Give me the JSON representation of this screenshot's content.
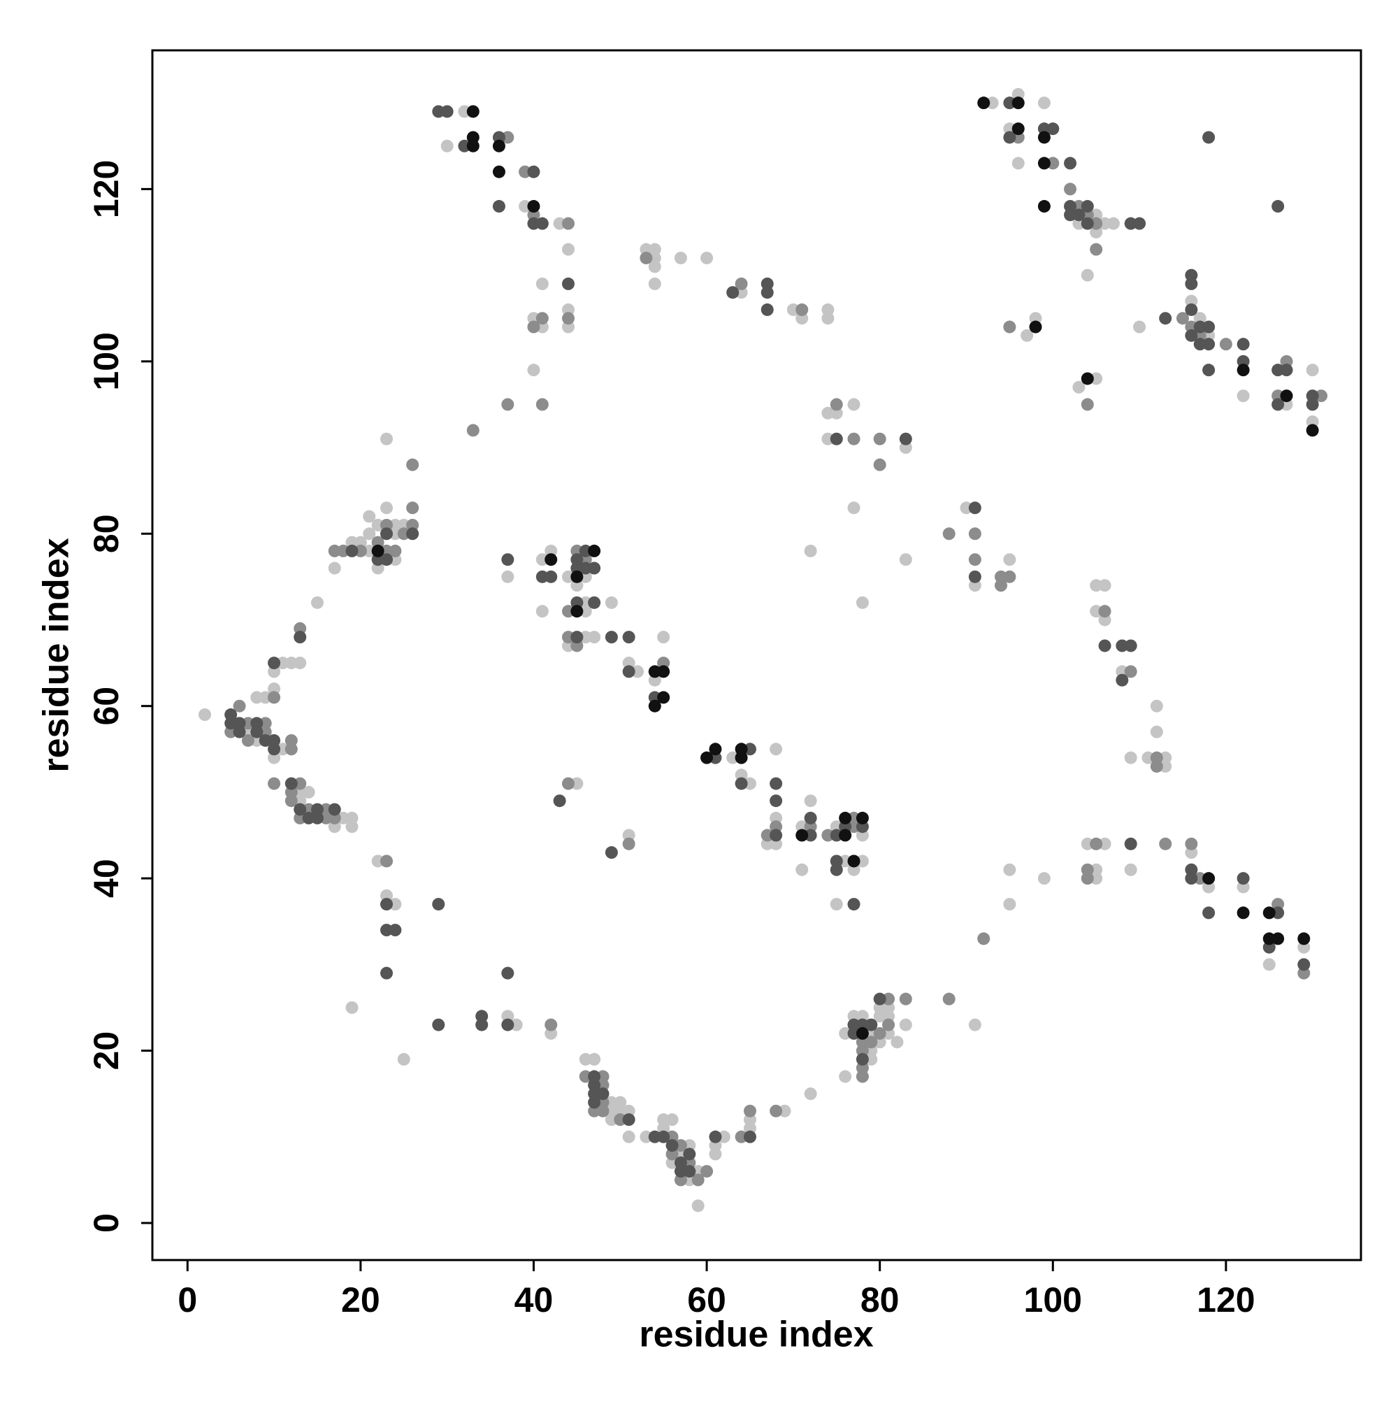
{
  "chart_data": {
    "type": "scatter",
    "x_label": "residue index",
    "y_label": "residue index",
    "xlim": [
      -4.06,
      135.6
    ],
    "ylim": [
      -4.3,
      136.1
    ],
    "xticks": [
      0,
      20,
      40,
      60,
      80,
      100,
      120
    ],
    "yticks": [
      0,
      20,
      40,
      60,
      80,
      100,
      120
    ],
    "grid": false,
    "series": [
      {
        "color": "#c4c4c4",
        "x": [
          32,
          30,
          39,
          43,
          44,
          41,
          44,
          44,
          40,
          41,
          40,
          53,
          54,
          54,
          54,
          57,
          60,
          54,
          64,
          70,
          71,
          74,
          74,
          74,
          75,
          74,
          77,
          83,
          77,
          72,
          78,
          83,
          93,
          96,
          99,
          95,
          96,
          105,
          103,
          106,
          107,
          105,
          104,
          97,
          98,
          103,
          105,
          110,
          116,
          117,
          118,
          122,
          127,
          130,
          130,
          2,
          7,
          8,
          11,
          10,
          8,
          9,
          10,
          10,
          11,
          12,
          13,
          15,
          13,
          14,
          13,
          18,
          19,
          17,
          19,
          17,
          19,
          20,
          21,
          21,
          21,
          22,
          22,
          23,
          24,
          24,
          24,
          25,
          23,
          22,
          23,
          24,
          19,
          37,
          38,
          42,
          25,
          37,
          41,
          41,
          42,
          44,
          45,
          46,
          46,
          46,
          46,
          47,
          44,
          49,
          51,
          52,
          55,
          54,
          45,
          51,
          63,
          64,
          65,
          68,
          68,
          67,
          68,
          71,
          72,
          71,
          75,
          78,
          76,
          77,
          78,
          75,
          46,
          47,
          49,
          49,
          50,
          50,
          51,
          49,
          51,
          53,
          55,
          56,
          55,
          58,
          57,
          56,
          59,
          58,
          59,
          62,
          61,
          61,
          65,
          65,
          69,
          72,
          76,
          76,
          77,
          78,
          79,
          79,
          79,
          80,
          80,
          81,
          81,
          81,
          80,
          82,
          83,
          91,
          90,
          91,
          95,
          105,
          106,
          105,
          106,
          108,
          112,
          112,
          109,
          111,
          113,
          113,
          95,
          95,
          99,
          104,
          106,
          105,
          105,
          109,
          116,
          118,
          122,
          125,
          129
        ],
        "values": [
          129,
          125,
          118,
          116,
          113,
          109,
          106,
          104,
          105,
          104,
          99,
          113,
          113,
          112,
          111,
          112,
          112,
          109,
          108,
          106,
          105,
          106,
          105,
          94,
          94,
          91,
          95,
          90,
          83,
          78,
          72,
          77,
          130,
          131,
          130,
          127,
          123,
          117,
          116,
          116,
          116,
          115,
          110,
          103,
          105,
          97,
          98,
          104,
          107,
          105,
          103,
          96,
          95,
          99,
          93,
          59,
          57,
          56,
          55,
          54,
          61,
          61,
          62,
          64,
          65,
          65,
          65,
          72,
          50,
          50,
          49,
          47,
          47,
          46,
          46,
          76,
          79,
          79,
          78,
          80,
          82,
          76,
          81,
          83,
          77,
          80,
          81,
          81,
          91,
          42,
          38,
          37,
          25,
          24,
          23,
          22,
          19,
          75,
          77,
          71,
          78,
          75,
          74,
          75,
          72,
          71,
          68,
          68,
          67,
          72,
          65,
          64,
          68,
          63,
          51,
          45,
          54,
          52,
          51,
          55,
          47,
          44,
          44,
          46,
          49,
          41,
          46,
          45,
          42,
          41,
          42,
          37,
          19,
          19,
          14,
          13,
          14,
          13,
          13,
          12,
          10,
          10,
          12,
          12,
          11,
          9,
          8,
          7,
          6,
          5,
          2,
          10,
          9,
          8,
          11,
          12,
          13,
          15,
          17,
          22,
          24,
          24,
          22,
          20,
          19,
          25,
          24,
          25,
          24,
          22,
          21,
          21,
          23,
          23,
          83,
          74,
          77,
          74,
          74,
          71,
          70,
          64,
          60,
          57,
          54,
          54,
          54,
          53,
          41,
          37,
          40,
          44,
          44,
          41,
          40,
          41,
          43,
          39,
          39,
          30,
          32
        ]
      },
      {
        "color": "#8c8c8c",
        "x": [
          37,
          39,
          40,
          44,
          44,
          41,
          40,
          41,
          37,
          33,
          53,
          64,
          71,
          75,
          77,
          80,
          80,
          96,
          100,
          102,
          103,
          104,
          105,
          105,
          95,
          104,
          115,
          116,
          117,
          120,
          127,
          126,
          131,
          6,
          7,
          9,
          5,
          9,
          7,
          12,
          12,
          10,
          13,
          10,
          13,
          12,
          12,
          14,
          16,
          13,
          16,
          17,
          17,
          18,
          20,
          22,
          23,
          23,
          24,
          25,
          26,
          26,
          26,
          23,
          42,
          45,
          46,
          44,
          44,
          45,
          55,
          44,
          51,
          68,
          67,
          72,
          74,
          77,
          77,
          46,
          48,
          48,
          48,
          47,
          48,
          50,
          56,
          57,
          56,
          58,
          60,
          57,
          59,
          64,
          65,
          68,
          78,
          78,
          78,
          78,
          79,
          81,
          81,
          80,
          83,
          88,
          88,
          91,
          91,
          94,
          94,
          95,
          106,
          109,
          112,
          112,
          92,
          105,
          104,
          104,
          113,
          116,
          117,
          126,
          129
        ],
        "values": [
          126,
          122,
          117,
          116,
          105,
          105,
          104,
          95,
          95,
          92,
          112,
          109,
          106,
          95,
          91,
          91,
          88,
          126,
          123,
          120,
          118,
          117,
          116,
          113,
          104,
          95,
          105,
          104,
          103,
          102,
          100,
          96,
          96,
          60,
          58,
          58,
          57,
          57,
          56,
          55,
          56,
          61,
          69,
          51,
          51,
          50,
          49,
          48,
          48,
          47,
          47,
          47,
          78,
          78,
          78,
          79,
          78,
          81,
          78,
          80,
          81,
          83,
          88,
          42,
          23,
          78,
          77,
          71,
          68,
          67,
          65,
          51,
          44,
          46,
          45,
          46,
          45,
          47,
          46,
          17,
          17,
          16,
          14,
          13,
          13,
          12,
          10,
          9,
          8,
          7,
          6,
          5,
          5,
          10,
          13,
          13,
          17,
          21,
          20,
          18,
          21,
          26,
          23,
          22,
          26,
          26,
          80,
          80,
          77,
          75,
          74,
          75,
          71,
          64,
          54,
          53,
          33,
          44,
          41,
          40,
          44,
          44,
          40,
          37,
          29
        ]
      },
      {
        "color": "#555555",
        "x": [
          29,
          30,
          32,
          36,
          36,
          40,
          40,
          41,
          44,
          63,
          67,
          67,
          67,
          75,
          83,
          95,
          95,
          99,
          100,
          102,
          102,
          104,
          102,
          103,
          104,
          109,
          110,
          118,
          126,
          113,
          116,
          116,
          116,
          117,
          118,
          116,
          117,
          118,
          118,
          122,
          122,
          126,
          127,
          126,
          130,
          130,
          5,
          5,
          6,
          8,
          6,
          8,
          9,
          10,
          10,
          10,
          13,
          12,
          13,
          15,
          17,
          14,
          15,
          19,
          22,
          23,
          23,
          26,
          23,
          23,
          24,
          23,
          29,
          29,
          34,
          34,
          37,
          37,
          37,
          41,
          42,
          45,
          45,
          46,
          46,
          47,
          45,
          47,
          45,
          49,
          51,
          51,
          54,
          43,
          49,
          61,
          65,
          64,
          68,
          68,
          68,
          72,
          72,
          75,
          76,
          78,
          75,
          75,
          77,
          47,
          47,
          47,
          48,
          47,
          51,
          54,
          55,
          56,
          58,
          57,
          57,
          58,
          61,
          65,
          77,
          77,
          78,
          78,
          79,
          80,
          91,
          91,
          106,
          108,
          109,
          108,
          109,
          116,
          116,
          118,
          122,
          126,
          125,
          129
        ],
        "values": [
          129,
          129,
          125,
          126,
          118,
          122,
          116,
          116,
          109,
          108,
          109,
          108,
          106,
          91,
          91,
          130,
          126,
          127,
          127,
          123,
          118,
          118,
          117,
          117,
          116,
          116,
          116,
          126,
          118,
          105,
          110,
          109,
          106,
          104,
          104,
          103,
          102,
          102,
          99,
          102,
          100,
          99,
          99,
          95,
          96,
          95,
          59,
          58,
          58,
          58,
          57,
          57,
          56,
          56,
          55,
          65,
          68,
          51,
          48,
          48,
          48,
          47,
          47,
          78,
          77,
          77,
          80,
          80,
          37,
          34,
          34,
          29,
          37,
          23,
          24,
          23,
          23,
          29,
          77,
          75,
          75,
          77,
          76,
          78,
          76,
          76,
          72,
          72,
          68,
          68,
          68,
          64,
          61,
          49,
          43,
          54,
          55,
          51,
          51,
          49,
          45,
          47,
          45,
          45,
          46,
          46,
          42,
          41,
          37,
          17,
          16,
          15,
          15,
          14,
          12,
          10,
          10,
          9,
          8,
          7,
          6,
          6,
          10,
          10,
          22,
          23,
          23,
          19,
          23,
          26,
          83,
          75,
          67,
          67,
          67,
          63,
          44,
          41,
          40,
          36,
          40,
          36,
          32,
          30
        ]
      },
      {
        "color": "#111111",
        "x": [
          33,
          33,
          33,
          36,
          36,
          40,
          92,
          96,
          96,
          99,
          99,
          99,
          98,
          104,
          122,
          127,
          130,
          22,
          42,
          45,
          47,
          45,
          54,
          55,
          55,
          54,
          60,
          61,
          64,
          64,
          71,
          76,
          76,
          78,
          77,
          78,
          118,
          122,
          125,
          125,
          126,
          129
        ],
        "values": [
          129,
          126,
          125,
          125,
          122,
          118,
          130,
          130,
          127,
          126,
          123,
          118,
          104,
          98,
          99,
          96,
          92,
          78,
          77,
          75,
          78,
          71,
          64,
          64,
          61,
          60,
          54,
          55,
          55,
          54,
          45,
          45,
          47,
          47,
          42,
          22,
          40,
          36,
          36,
          33,
          33,
          33
        ]
      }
    ]
  }
}
